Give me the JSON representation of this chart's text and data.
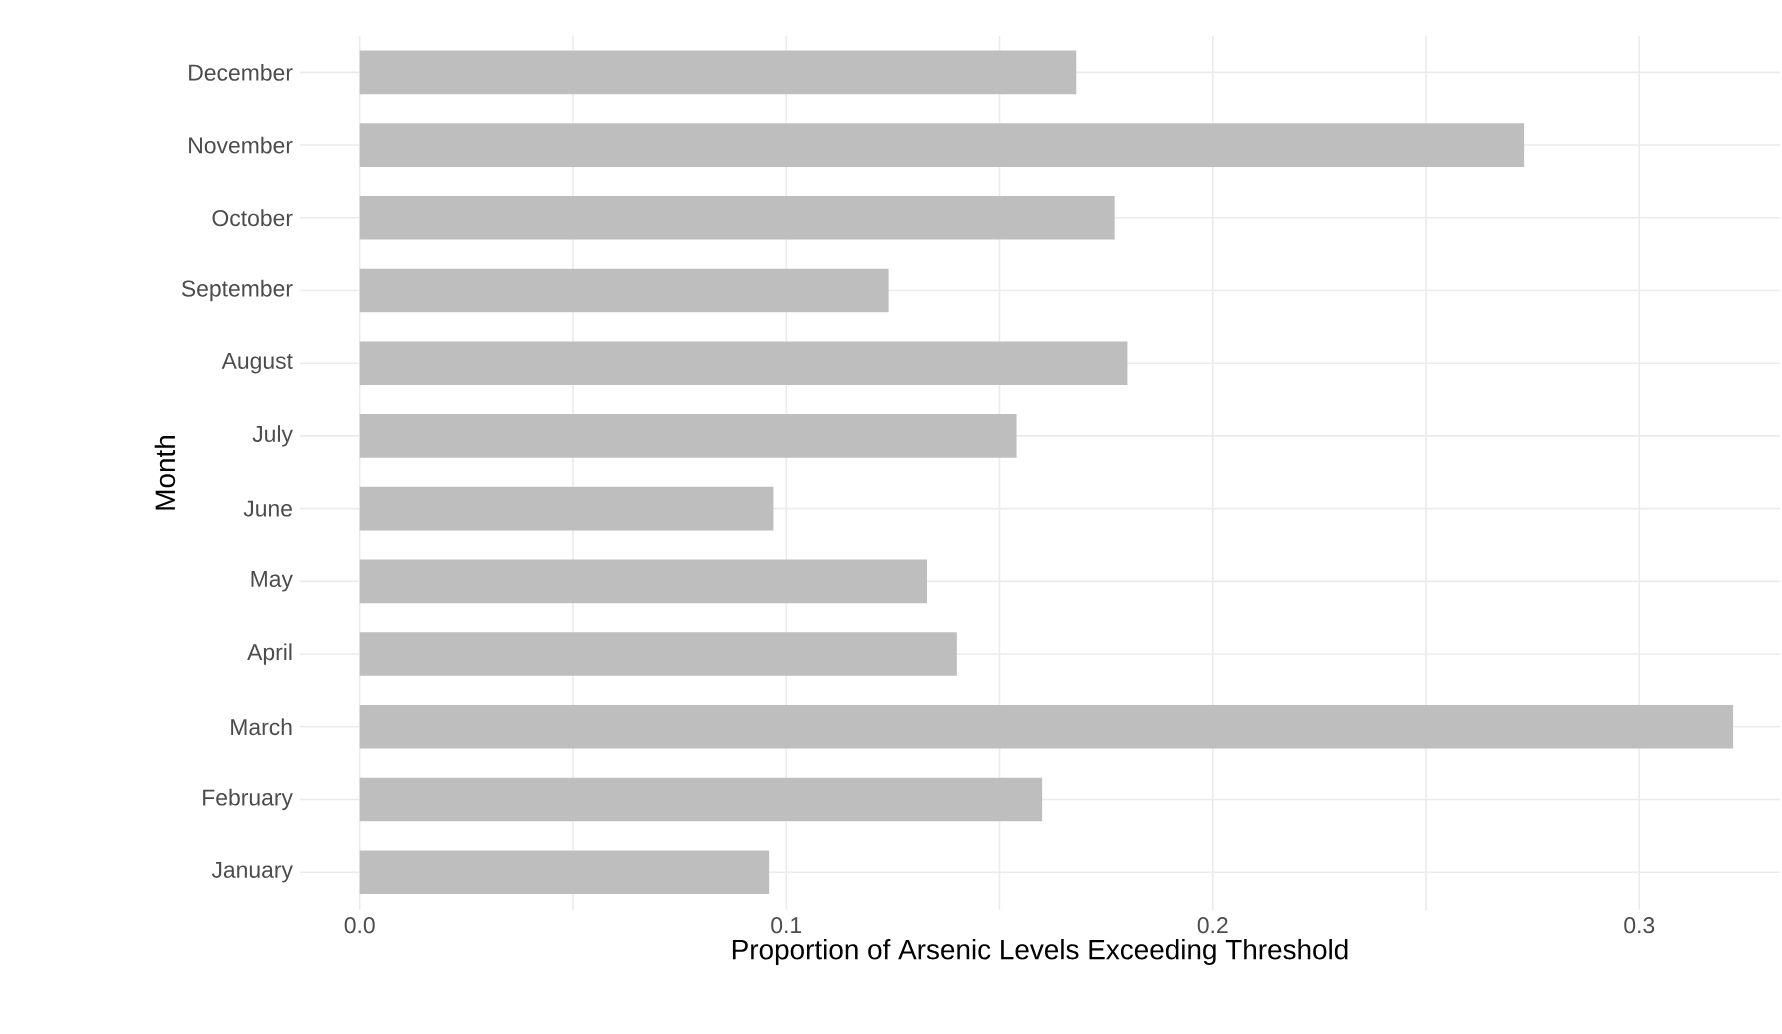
{
  "chart_data": {
    "type": "bar",
    "orientation": "horizontal",
    "xlabel": "Proportion of Arsenic Levels Exceeding Threshold",
    "ylabel": "Month",
    "categories": [
      "December",
      "November",
      "October",
      "September",
      "August",
      "July",
      "June",
      "May",
      "April",
      "March",
      "February",
      "January"
    ],
    "values": [
      0.168,
      0.273,
      0.177,
      0.124,
      0.18,
      0.154,
      0.097,
      0.133,
      0.14,
      0.322,
      0.16,
      0.096
    ],
    "color": "#bebebe",
    "xlim": [
      -0.014,
      0.333
    ],
    "xticks": [
      {
        "value": 0,
        "label": "0.0"
      },
      {
        "value": 0.05,
        "label": null
      },
      0.1,
      {
        "value": 0.15,
        "label": null
      },
      0.2,
      {
        "value": 0.25,
        "label": null
      },
      0.3
    ],
    "grid": true
  }
}
